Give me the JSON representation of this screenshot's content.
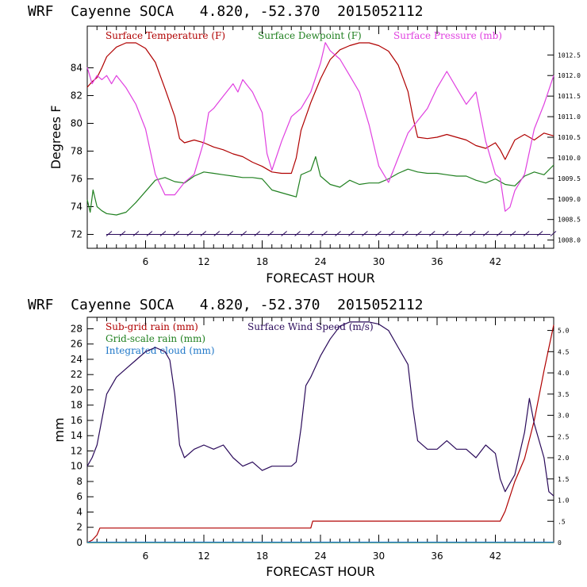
{
  "chart_data": [
    {
      "type": "line",
      "header": "WRF  Cayenne SOCA   4.820, -52.370  2015052112",
      "title": "",
      "xlabel": "FORECAST HOUR",
      "ylabel": "Degrees F",
      "xlim": [
        0,
        48
      ],
      "ylim": [
        71,
        87
      ],
      "x_ticks": [
        6,
        12,
        18,
        24,
        30,
        36,
        42
      ],
      "x_tick_labels": [
        "6",
        "12",
        "18",
        "24",
        "30",
        "36",
        "42"
      ],
      "y_ticks": [
        72,
        74,
        76,
        78,
        80,
        82,
        84
      ],
      "y_tick_labels": [
        "72",
        "74",
        "76",
        "78",
        "80",
        "82",
        "84"
      ],
      "y2lim": [
        1007.8,
        1013.2
      ],
      "y2_ticks": [
        1008.0,
        1008.5,
        1009.0,
        1009.5,
        1010.0,
        1010.5,
        1011.0,
        1011.5,
        1012.0,
        1012.5
      ],
      "y2_tick_labels": [
        "1008.0",
        "1008.5",
        "1009.0",
        "1009.5",
        "1010.0",
        "1010.5",
        "1011.0",
        "1011.5",
        "1012.0",
        "1012.5"
      ],
      "legend": [
        "Surface Temperature (F)",
        "Surface Dewpoint (F)",
        "Surface Pressure (mb)"
      ],
      "series": [
        {
          "name": "Surface Temperature (F)",
          "color": "#b00000",
          "axis": "left",
          "x": [
            0,
            0.5,
            1,
            1.5,
            2,
            3,
            4,
            5,
            6,
            7,
            8,
            9,
            9.5,
            10,
            11,
            12,
            13,
            14,
            15,
            16,
            17,
            18,
            19,
            20,
            21,
            21.5,
            22,
            23,
            24,
            25,
            26,
            27,
            28,
            29,
            30,
            31,
            32,
            33,
            33.5,
            34,
            35,
            36,
            37,
            38,
            39,
            40,
            41,
            42,
            42.5,
            43,
            44,
            45,
            46,
            47,
            48
          ],
          "values": [
            82.6,
            83.0,
            83.3,
            84.0,
            84.8,
            85.5,
            85.8,
            85.8,
            85.4,
            84.4,
            82.5,
            80.5,
            78.9,
            78.6,
            78.8,
            78.6,
            78.3,
            78.1,
            77.8,
            77.6,
            77.2,
            76.9,
            76.5,
            76.4,
            76.4,
            77.5,
            79.5,
            81.5,
            83.2,
            84.6,
            85.3,
            85.6,
            85.8,
            85.8,
            85.6,
            85.2,
            84.2,
            82.3,
            80.5,
            79.0,
            78.9,
            79.0,
            79.2,
            79.0,
            78.8,
            78.4,
            78.2,
            78.6,
            78.1,
            77.4,
            78.8,
            79.2,
            78.8,
            79.3,
            79.1
          ]
        },
        {
          "name": "Surface Dewpoint (F)",
          "color": "#208020",
          "axis": "left",
          "x": [
            0,
            0.3,
            0.6,
            1,
            1.5,
            2,
            3,
            4,
            5,
            6,
            7,
            8,
            9,
            10,
            11,
            12,
            13,
            14,
            15,
            16,
            17,
            18,
            19,
            20,
            21,
            21.5,
            22,
            23,
            23.5,
            24,
            25,
            26,
            27,
            28,
            29,
            30,
            31,
            32,
            33,
            34,
            35,
            36,
            37,
            38,
            39,
            40,
            41,
            42,
            43,
            44,
            45,
            46,
            47,
            48
          ],
          "values": [
            74.5,
            73.6,
            75.2,
            74.0,
            73.7,
            73.5,
            73.4,
            73.6,
            74.3,
            75.1,
            75.9,
            76.1,
            75.8,
            75.7,
            76.2,
            76.5,
            76.4,
            76.3,
            76.2,
            76.1,
            76.1,
            76.0,
            75.2,
            75.0,
            74.8,
            74.7,
            76.3,
            76.6,
            77.6,
            76.2,
            75.6,
            75.4,
            75.9,
            75.6,
            75.7,
            75.7,
            76.0,
            76.4,
            76.7,
            76.5,
            76.4,
            76.4,
            76.3,
            76.2,
            76.2,
            75.9,
            75.7,
            76.0,
            75.6,
            75.5,
            76.2,
            76.5,
            76.3,
            77.0
          ]
        },
        {
          "name": "Surface Pressure (mb)",
          "color": "#e040e0",
          "axis": "right",
          "x": [
            0,
            0.5,
            1,
            1.5,
            2,
            2.5,
            3,
            4,
            5,
            6,
            7,
            8,
            9,
            10,
            11,
            12,
            12.5,
            13,
            14,
            15,
            15.5,
            16,
            17,
            18,
            18.5,
            19,
            20,
            21,
            22,
            23,
            24,
            24.5,
            25,
            26,
            27,
            28,
            29,
            30,
            31,
            32,
            33,
            34,
            35,
            36,
            37,
            38,
            39,
            40,
            41,
            42,
            42.5,
            43,
            43.5,
            44,
            45,
            46,
            47,
            48
          ],
          "values": [
            1012.2,
            1011.8,
            1012.0,
            1011.9,
            1012.0,
            1011.8,
            1012.0,
            1011.7,
            1011.3,
            1010.7,
            1009.6,
            1009.1,
            1009.1,
            1009.4,
            1009.6,
            1010.4,
            1011.1,
            1011.2,
            1011.5,
            1011.8,
            1011.6,
            1011.9,
            1011.6,
            1011.1,
            1010.1,
            1009.7,
            1010.4,
            1011.0,
            1011.2,
            1011.6,
            1012.3,
            1012.8,
            1012.6,
            1012.4,
            1012.0,
            1011.6,
            1010.8,
            1009.8,
            1009.4,
            1010.0,
            1010.6,
            1010.9,
            1011.2,
            1011.7,
            1012.1,
            1011.7,
            1011.3,
            1011.6,
            1010.4,
            1009.6,
            1009.5,
            1008.7,
            1008.8,
            1009.2,
            1009.6,
            1010.7,
            1011.3,
            1012.0
          ]
        }
      ],
      "wind_barbs": {
        "level": 72,
        "count": 34,
        "color": "#2a0a5a"
      }
    },
    {
      "type": "line",
      "header": "WRF  Cayenne SOCA   4.820, -52.370  2015052112",
      "title": "",
      "xlabel": "FORECAST HOUR",
      "ylabel": "mm",
      "xlim": [
        0,
        48
      ],
      "ylim": [
        0,
        29.5
      ],
      "x_ticks": [
        6,
        12,
        18,
        24,
        30,
        36,
        42
      ],
      "x_tick_labels": [
        "6",
        "12",
        "18",
        "24",
        "30",
        "36",
        "42"
      ],
      "y_ticks": [
        0,
        2,
        4,
        6,
        8,
        10,
        12,
        14,
        16,
        18,
        20,
        22,
        24,
        26,
        28
      ],
      "y_tick_labels": [
        "0",
        "2",
        "4",
        "6",
        "8",
        "10",
        "12",
        "14",
        "16",
        "18",
        "20",
        "22",
        "24",
        "26",
        "28"
      ],
      "y2lim": [
        0,
        5.31
      ],
      "y2_ticks": [
        0,
        0.5,
        1.0,
        1.5,
        2.0,
        2.5,
        3.0,
        3.5,
        4.0,
        4.5,
        5.0
      ],
      "y2_tick_labels": [
        "0",
        ".5",
        "1.0",
        "1.5",
        "2.0",
        "2.5",
        "3.0",
        "3.5",
        "4.0",
        "4.5",
        "5.0"
      ],
      "legend": [
        "Sub-grid rain (mm)",
        "Surface Wind Speed (m/s)",
        "Grid-scale rain (mm)",
        "Integrated cloud (mm)"
      ],
      "series": [
        {
          "name": "Sub-grid rain (mm)",
          "color": "#b00000",
          "axis": "left",
          "x": [
            0,
            0.5,
            1,
            1.3,
            2,
            10,
            22,
            23,
            23.2,
            30,
            42,
            42.5,
            43,
            44,
            45,
            46,
            47,
            48
          ],
          "values": [
            0,
            0.3,
            1.0,
            1.9,
            1.9,
            1.9,
            1.9,
            1.9,
            2.8,
            2.8,
            2.8,
            2.8,
            4.1,
            8.0,
            11.0,
            16.0,
            22.5,
            28.5
          ]
        },
        {
          "name": "Grid-scale rain (mm)",
          "color": "#208020",
          "axis": "left",
          "x": [
            0,
            48
          ],
          "values": [
            0,
            0
          ]
        },
        {
          "name": "Integrated cloud (mm)",
          "color": "#1f77c8",
          "axis": "left",
          "x": [
            0,
            48
          ],
          "values": [
            0.05,
            0.05
          ]
        },
        {
          "name": "Surface Wind Speed (m/s)",
          "color": "#2a0a5a",
          "axis": "right",
          "x": [
            0,
            0.5,
            1,
            1.5,
            2,
            3,
            4,
            5,
            6,
            7,
            8,
            8.5,
            9,
            9.5,
            10,
            11,
            12,
            13,
            14,
            15,
            16,
            17,
            18,
            19,
            20,
            21,
            21.5,
            22,
            22.5,
            23,
            24,
            25,
            26,
            27,
            28,
            29,
            30,
            31,
            32,
            33,
            33.5,
            34,
            35,
            36,
            37,
            38,
            39,
            40,
            41,
            42,
            42.5,
            43,
            43.5,
            44,
            45,
            45.5,
            46,
            47,
            47.5,
            48
          ],
          "values": [
            1.8,
            2.0,
            2.3,
            2.9,
            3.5,
            3.9,
            4.1,
            4.3,
            4.5,
            4.6,
            4.5,
            4.3,
            3.5,
            2.3,
            2.0,
            2.2,
            2.3,
            2.2,
            2.3,
            2.0,
            1.8,
            1.9,
            1.7,
            1.8,
            1.8,
            1.8,
            1.9,
            2.7,
            3.7,
            3.9,
            4.4,
            4.8,
            5.1,
            5.2,
            5.2,
            5.2,
            5.15,
            5.0,
            4.6,
            4.2,
            3.2,
            2.4,
            2.2,
            2.2,
            2.4,
            2.2,
            2.2,
            2.0,
            2.3,
            2.1,
            1.5,
            1.2,
            1.4,
            1.6,
            2.6,
            3.4,
            2.8,
            2.0,
            1.2,
            1.1
          ]
        }
      ]
    }
  ]
}
